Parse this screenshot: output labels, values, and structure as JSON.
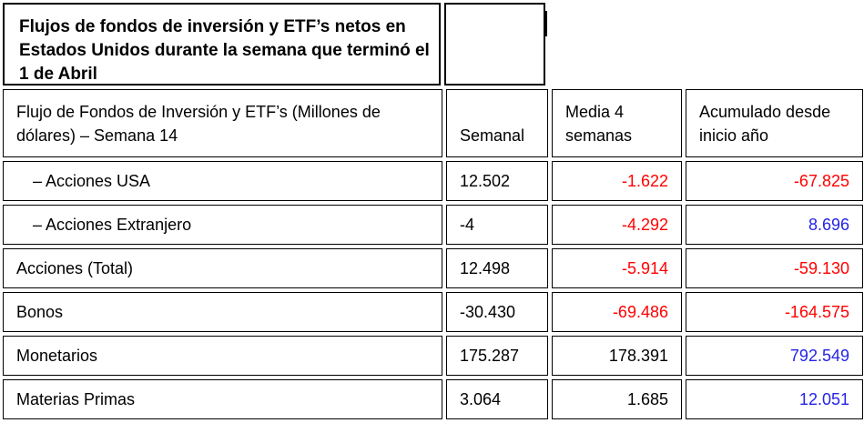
{
  "title": "Flujos de fondos de inversión y ETF’s netos en Estados Unidos durante la semana que terminó el 1 de Abril",
  "header": {
    "col1": "Flujo de Fondos de Inversión y ETF’s (Millones de dólares) – Semana 14",
    "col2": "Semanal",
    "col3": "Media 4 semanas",
    "col4": "Acumulado desde inicio año"
  },
  "rows": [
    {
      "label": "– Acciones USA",
      "semanal": "12.502",
      "media": "-1.622",
      "acumulado": "-67.825"
    },
    {
      "label": "– Acciones Extranjero",
      "semanal": "-4",
      "media": "-4.292",
      "acumulado": "8.696"
    },
    {
      "label": "Acciones (Total)",
      "semanal": "12.498",
      "media": "-5.914",
      "acumulado": "-59.130"
    },
    {
      "label": "Bonos",
      "semanal": "-30.430",
      "media": "-69.486",
      "acumulado": "-164.575"
    },
    {
      "label": "Monetarios",
      "semanal": "175.287",
      "media": "178.391",
      "acumulado": "792.549"
    },
    {
      "label": "Materias Primas",
      "semanal": "3.064",
      "media": "1.685",
      "acumulado": "12.051"
    }
  ],
  "colors": {
    "negative": "#ff0000",
    "positive": "#2424e6",
    "neutral": "#000000"
  }
}
